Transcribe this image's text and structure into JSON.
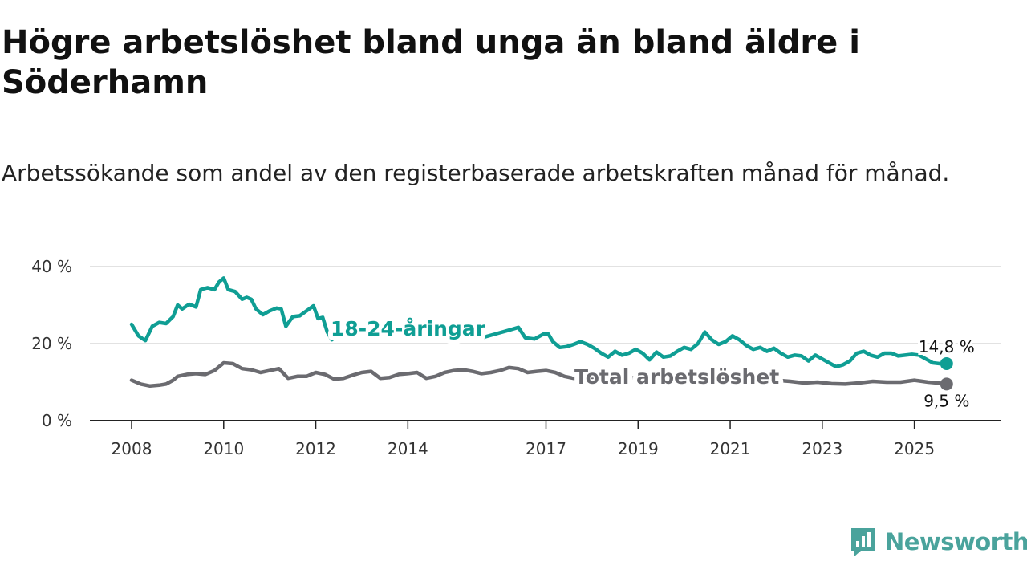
{
  "header": {
    "title": "Högre arbetslöshet bland unga än bland äldre i Söderhamn",
    "subtitle": "Arbetssökande som andel av den registerbaserade arbetskraften månad för månad."
  },
  "brand": {
    "name": "Newsworthy",
    "icon": "newsworthy-logo-icon",
    "color": "#4aa39c"
  },
  "chart_data": {
    "type": "line",
    "title": "Högre arbetslöshet bland unga än bland äldre i Söderhamn",
    "xlabel": "",
    "ylabel": "",
    "xlim": [
      2008,
      2026
    ],
    "ylim": [
      0,
      40
    ],
    "grid": true,
    "y_ticks": [
      {
        "value": 0,
        "label": "0 %"
      },
      {
        "value": 20,
        "label": "20 %"
      },
      {
        "value": 40,
        "label": "40 %"
      }
    ],
    "x_ticks": [
      {
        "value": 2008,
        "label": "2008"
      },
      {
        "value": 2010,
        "label": "2010"
      },
      {
        "value": 2012,
        "label": "2012"
      },
      {
        "value": 2014,
        "label": "2014"
      },
      {
        "value": 2017,
        "label": "2017"
      },
      {
        "value": 2019,
        "label": "2019"
      },
      {
        "value": 2021,
        "label": "2021"
      },
      {
        "value": 2023,
        "label": "2023"
      },
      {
        "value": 2025,
        "label": "2025"
      }
    ],
    "series": [
      {
        "name": "18-24-åringar",
        "color": "#0f9e94",
        "end_label": "14,8 %",
        "points": [
          [
            2008.0,
            25.0
          ],
          [
            2008.15,
            22.0
          ],
          [
            2008.3,
            20.8
          ],
          [
            2008.45,
            24.5
          ],
          [
            2008.6,
            25.5
          ],
          [
            2008.75,
            25.2
          ],
          [
            2008.9,
            27.0
          ],
          [
            2009.0,
            30.0
          ],
          [
            2009.1,
            29.0
          ],
          [
            2009.25,
            30.2
          ],
          [
            2009.4,
            29.5
          ],
          [
            2009.5,
            34.0
          ],
          [
            2009.65,
            34.5
          ],
          [
            2009.8,
            34.0
          ],
          [
            2009.9,
            36.0
          ],
          [
            2010.0,
            37.0
          ],
          [
            2010.1,
            34.0
          ],
          [
            2010.25,
            33.5
          ],
          [
            2010.4,
            31.5
          ],
          [
            2010.5,
            32.0
          ],
          [
            2010.6,
            31.5
          ],
          [
            2010.7,
            29.0
          ],
          [
            2010.85,
            27.5
          ],
          [
            2011.0,
            28.5
          ],
          [
            2011.15,
            29.2
          ],
          [
            2011.25,
            29.0
          ],
          [
            2011.35,
            24.5
          ],
          [
            2011.5,
            27.0
          ],
          [
            2011.65,
            27.2
          ],
          [
            2011.8,
            28.5
          ],
          [
            2011.95,
            29.8
          ],
          [
            2012.05,
            26.5
          ],
          [
            2012.15,
            26.8
          ],
          [
            2012.25,
            23.0
          ],
          [
            2012.35,
            21.0
          ],
          [
            2012.5,
            22.5
          ],
          [
            2012.8,
            23.5
          ],
          [
            2013.2,
            22.0
          ],
          [
            2013.6,
            23.0
          ],
          [
            2014.0,
            22.5
          ],
          [
            2014.4,
            22.0
          ],
          [
            2014.8,
            23.5
          ],
          [
            2015.2,
            22.0
          ],
          [
            2015.6,
            21.5
          ],
          [
            2015.9,
            22.5
          ],
          [
            2016.2,
            23.5
          ],
          [
            2016.4,
            24.2
          ],
          [
            2016.55,
            21.5
          ],
          [
            2016.75,
            21.2
          ],
          [
            2016.95,
            22.5
          ],
          [
            2017.05,
            22.5
          ],
          [
            2017.15,
            20.5
          ],
          [
            2017.3,
            19.0
          ],
          [
            2017.45,
            19.2
          ],
          [
            2017.6,
            19.8
          ],
          [
            2017.75,
            20.5
          ],
          [
            2017.9,
            19.8
          ],
          [
            2018.05,
            18.8
          ],
          [
            2018.2,
            17.5
          ],
          [
            2018.35,
            16.5
          ],
          [
            2018.5,
            18.0
          ],
          [
            2018.65,
            17.0
          ],
          [
            2018.8,
            17.5
          ],
          [
            2018.95,
            18.5
          ],
          [
            2019.1,
            17.5
          ],
          [
            2019.25,
            15.8
          ],
          [
            2019.4,
            17.8
          ],
          [
            2019.55,
            16.5
          ],
          [
            2019.7,
            16.8
          ],
          [
            2019.85,
            18.0
          ],
          [
            2020.0,
            19.0
          ],
          [
            2020.15,
            18.5
          ],
          [
            2020.3,
            20.0
          ],
          [
            2020.45,
            23.0
          ],
          [
            2020.6,
            21.0
          ],
          [
            2020.75,
            19.8
          ],
          [
            2020.9,
            20.5
          ],
          [
            2021.05,
            22.0
          ],
          [
            2021.2,
            21.0
          ],
          [
            2021.35,
            19.5
          ],
          [
            2021.5,
            18.5
          ],
          [
            2021.65,
            19.0
          ],
          [
            2021.8,
            18.0
          ],
          [
            2021.95,
            18.8
          ],
          [
            2022.1,
            17.5
          ],
          [
            2022.25,
            16.5
          ],
          [
            2022.4,
            17.0
          ],
          [
            2022.55,
            16.8
          ],
          [
            2022.7,
            15.5
          ],
          [
            2022.85,
            17.0
          ],
          [
            2023.0,
            16.0
          ],
          [
            2023.15,
            15.0
          ],
          [
            2023.3,
            14.0
          ],
          [
            2023.45,
            14.5
          ],
          [
            2023.6,
            15.5
          ],
          [
            2023.75,
            17.5
          ],
          [
            2023.9,
            18.0
          ],
          [
            2024.05,
            17.0
          ],
          [
            2024.2,
            16.5
          ],
          [
            2024.35,
            17.5
          ],
          [
            2024.5,
            17.5
          ],
          [
            2024.65,
            16.8
          ],
          [
            2024.8,
            17.0
          ],
          [
            2024.95,
            17.2
          ],
          [
            2025.1,
            17.0
          ],
          [
            2025.25,
            16.0
          ],
          [
            2025.4,
            15.0
          ],
          [
            2025.55,
            14.8
          ],
          [
            2025.7,
            14.8
          ]
        ]
      },
      {
        "name": "Total arbetslöshet",
        "color": "#6b6b70",
        "end_label": "9,5 %",
        "points": [
          [
            2008.0,
            10.5
          ],
          [
            2008.2,
            9.5
          ],
          [
            2008.4,
            9.0
          ],
          [
            2008.6,
            9.2
          ],
          [
            2008.75,
            9.5
          ],
          [
            2008.9,
            10.5
          ],
          [
            2009.0,
            11.5
          ],
          [
            2009.2,
            12.0
          ],
          [
            2009.4,
            12.2
          ],
          [
            2009.6,
            12.0
          ],
          [
            2009.8,
            13.0
          ],
          [
            2010.0,
            15.0
          ],
          [
            2010.2,
            14.8
          ],
          [
            2010.4,
            13.5
          ],
          [
            2010.6,
            13.2
          ],
          [
            2010.8,
            12.5
          ],
          [
            2011.0,
            13.0
          ],
          [
            2011.2,
            13.5
          ],
          [
            2011.4,
            11.0
          ],
          [
            2011.6,
            11.5
          ],
          [
            2011.8,
            11.5
          ],
          [
            2012.0,
            12.5
          ],
          [
            2012.2,
            12.0
          ],
          [
            2012.4,
            10.8
          ],
          [
            2012.6,
            11.0
          ],
          [
            2012.8,
            11.8
          ],
          [
            2013.0,
            12.5
          ],
          [
            2013.2,
            12.8
          ],
          [
            2013.4,
            11.0
          ],
          [
            2013.6,
            11.2
          ],
          [
            2013.8,
            12.0
          ],
          [
            2014.0,
            12.2
          ],
          [
            2014.2,
            12.5
          ],
          [
            2014.4,
            11.0
          ],
          [
            2014.6,
            11.5
          ],
          [
            2014.8,
            12.5
          ],
          [
            2015.0,
            13.0
          ],
          [
            2015.2,
            13.2
          ],
          [
            2015.4,
            12.8
          ],
          [
            2015.6,
            12.2
          ],
          [
            2015.8,
            12.5
          ],
          [
            2016.0,
            13.0
          ],
          [
            2016.2,
            13.8
          ],
          [
            2016.4,
            13.5
          ],
          [
            2016.6,
            12.5
          ],
          [
            2016.8,
            12.8
          ],
          [
            2017.0,
            13.0
          ],
          [
            2017.2,
            12.5
          ],
          [
            2017.4,
            11.5
          ],
          [
            2017.6,
            11.0
          ],
          [
            2017.8,
            11.0
          ],
          [
            2018.0,
            11.0
          ],
          [
            2018.5,
            11.5
          ],
          [
            2019.0,
            11.0
          ],
          [
            2019.5,
            11.5
          ],
          [
            2020.0,
            12.0
          ],
          [
            2020.5,
            11.5
          ],
          [
            2021.0,
            11.0
          ],
          [
            2021.5,
            10.5
          ],
          [
            2022.0,
            10.5
          ],
          [
            2022.3,
            10.2
          ],
          [
            2022.6,
            9.8
          ],
          [
            2022.9,
            10.0
          ],
          [
            2023.2,
            9.6
          ],
          [
            2023.5,
            9.5
          ],
          [
            2023.8,
            9.8
          ],
          [
            2024.1,
            10.2
          ],
          [
            2024.4,
            10.0
          ],
          [
            2024.7,
            10.0
          ],
          [
            2025.0,
            10.5
          ],
          [
            2025.3,
            10.0
          ],
          [
            2025.5,
            9.8
          ],
          [
            2025.7,
            9.5
          ]
        ]
      }
    ]
  }
}
